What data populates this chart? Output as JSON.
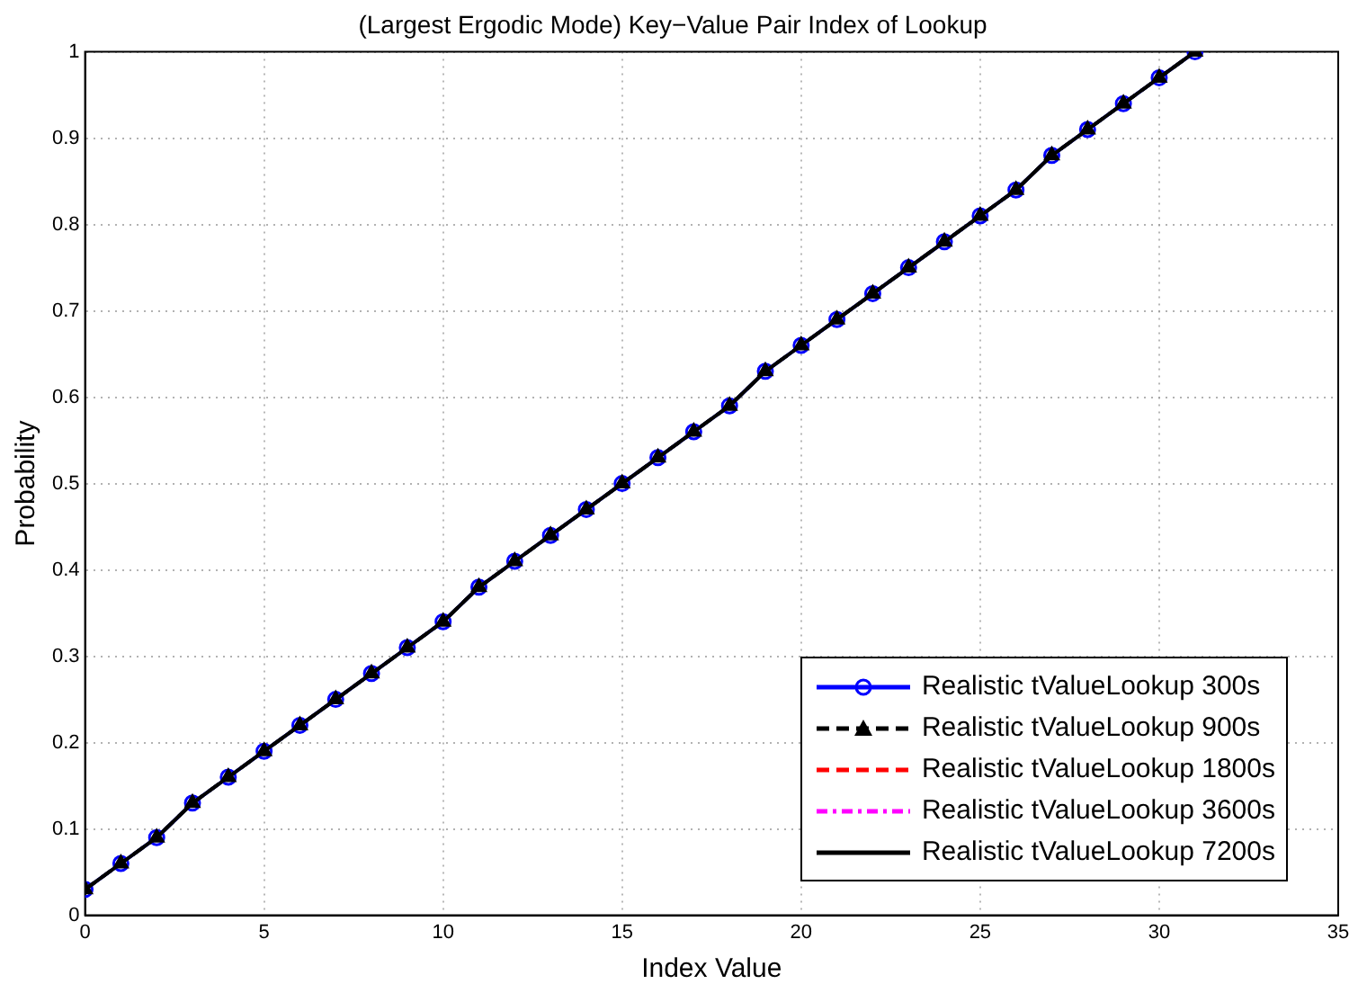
{
  "chart_data": {
    "type": "line",
    "title": "(Largest Ergodic Mode) Key−Value Pair Index of Lookup",
    "xlabel": "Index Value",
    "ylabel": "Probability",
    "x": [
      0,
      1,
      2,
      3,
      4,
      5,
      6,
      7,
      8,
      9,
      10,
      11,
      12,
      13,
      14,
      15,
      16,
      17,
      18,
      19,
      20,
      21,
      22,
      23,
      24,
      25,
      26,
      27,
      28,
      29,
      30,
      31
    ],
    "series": [
      {
        "name": "Realistic tValueLookup 300s",
        "color": "#0000ff",
        "marker": "circle",
        "line_style": "solid",
        "values": [
          0.03,
          0.06,
          0.09,
          0.13,
          0.16,
          0.19,
          0.22,
          0.25,
          0.28,
          0.31,
          0.34,
          0.38,
          0.41,
          0.44,
          0.47,
          0.5,
          0.53,
          0.56,
          0.59,
          0.63,
          0.66,
          0.69,
          0.72,
          0.75,
          0.78,
          0.81,
          0.84,
          0.88,
          0.91,
          0.94,
          0.97,
          1.0
        ]
      },
      {
        "name": "Realistic tValueLookup 900s",
        "color": "#000000",
        "marker": "triangle",
        "line_style": "dashed",
        "values": [
          0.03,
          0.06,
          0.09,
          0.13,
          0.16,
          0.19,
          0.22,
          0.25,
          0.28,
          0.31,
          0.34,
          0.38,
          0.41,
          0.44,
          0.47,
          0.5,
          0.53,
          0.56,
          0.59,
          0.63,
          0.66,
          0.69,
          0.72,
          0.75,
          0.78,
          0.81,
          0.84,
          0.88,
          0.91,
          0.94,
          0.97,
          1.0
        ]
      },
      {
        "name": "Realistic tValueLookup 1800s",
        "color": "#ff0000",
        "marker": "none",
        "line_style": "dashed",
        "values": [
          null,
          null,
          null,
          null,
          null,
          null,
          null,
          null,
          null,
          null,
          null,
          null,
          null,
          null,
          null,
          null,
          null,
          null,
          null,
          null,
          null,
          null,
          null,
          null,
          null,
          null,
          null,
          null,
          null,
          null,
          null,
          null
        ]
      },
      {
        "name": "Realistic tValueLookup 3600s",
        "color": "#ff00ff",
        "marker": "none",
        "line_style": "dotted",
        "values": [
          null,
          null,
          null,
          null,
          null,
          null,
          null,
          null,
          null,
          null,
          null,
          null,
          null,
          null,
          null,
          null,
          null,
          null,
          null,
          null,
          null,
          null,
          null,
          null,
          null,
          null,
          null,
          null,
          null,
          null,
          null,
          null
        ]
      },
      {
        "name": "Realistic tValueLookup 7200s",
        "color": "#000000",
        "marker": "none",
        "line_style": "solid",
        "values": [
          0.03,
          0.06,
          0.09,
          0.13,
          0.16,
          0.19,
          0.22,
          0.25,
          0.28,
          0.31,
          0.34,
          0.38,
          0.41,
          0.44,
          0.47,
          0.5,
          0.53,
          0.56,
          0.59,
          0.63,
          0.66,
          0.69,
          0.72,
          0.75,
          0.78,
          0.81,
          0.84,
          0.88,
          0.91,
          0.94,
          0.97,
          1.0
        ]
      }
    ],
    "xlim": [
      0,
      35
    ],
    "xticks": [
      0,
      5,
      10,
      15,
      20,
      25,
      30,
      35
    ],
    "ylim": [
      0,
      1
    ],
    "yticks": [
      0,
      0.1,
      0.2,
      0.3,
      0.4,
      0.5,
      0.6,
      0.7,
      0.8,
      0.9,
      1
    ],
    "grid": true,
    "legend": "bottom right"
  }
}
